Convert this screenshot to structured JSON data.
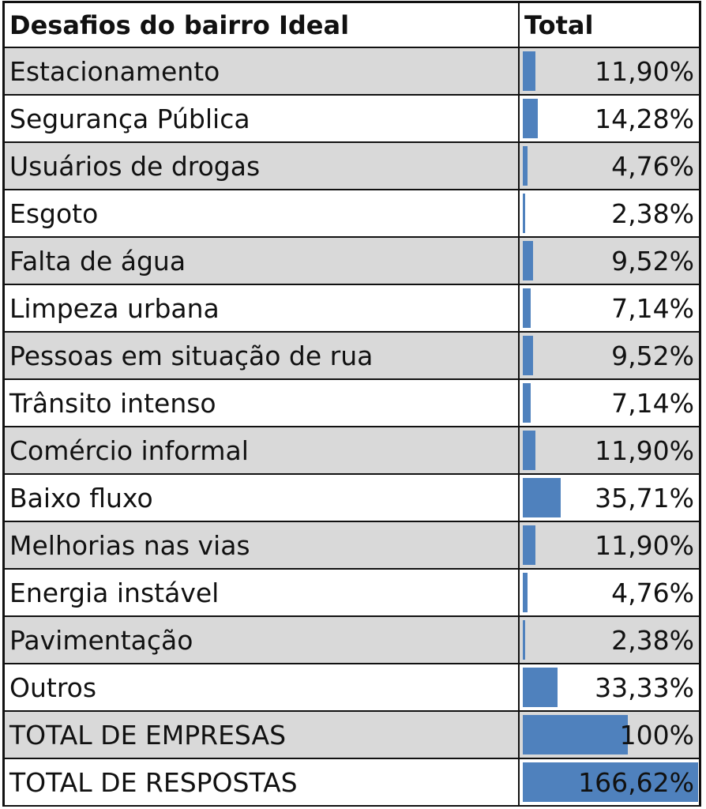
{
  "header": {
    "label": "Desafios do bairro Ideal",
    "value_label": "Total"
  },
  "chart_data": {
    "type": "table",
    "bar_color": "#4f81bd",
    "shaded_color": "#d9d9d9",
    "columns": [
      "Desafios do bairro Ideal",
      "Total"
    ],
    "rows": [
      {
        "label": "Estacionamento",
        "value": 11.9,
        "display": "11,90%"
      },
      {
        "label": "Segurança Pública",
        "value": 14.28,
        "display": "14,28%"
      },
      {
        "label": "Usuários de drogas",
        "value": 4.76,
        "display": "4,76%"
      },
      {
        "label": "Esgoto",
        "value": 2.38,
        "display": "2,38%"
      },
      {
        "label": "Falta de água",
        "value": 9.52,
        "display": "9,52%"
      },
      {
        "label": "Limpeza urbana",
        "value": 7.14,
        "display": "7,14%"
      },
      {
        "label": "Pessoas em situação de rua",
        "value": 9.52,
        "display": "9,52%"
      },
      {
        "label": "Trânsito intenso",
        "value": 7.14,
        "display": "7,14%"
      },
      {
        "label": "Comércio informal",
        "value": 11.9,
        "display": "11,90%"
      },
      {
        "label": "Baixo fluxo",
        "value": 35.71,
        "display": "35,71%"
      },
      {
        "label": "Melhorias nas vias",
        "value": 11.9,
        "display": "11,90%"
      },
      {
        "label": "Energia instável",
        "value": 4.76,
        "display": "4,76%"
      },
      {
        "label": "Pavimentação",
        "value": 2.38,
        "display": "2,38%"
      },
      {
        "label": "Outros",
        "value": 33.33,
        "display": "33,33%"
      },
      {
        "label": "TOTAL DE EMPRESAS",
        "value": 100,
        "display": "100%"
      },
      {
        "label": "TOTAL DE RESPOSTAS",
        "value": 166.62,
        "display": "166,62%"
      }
    ]
  }
}
